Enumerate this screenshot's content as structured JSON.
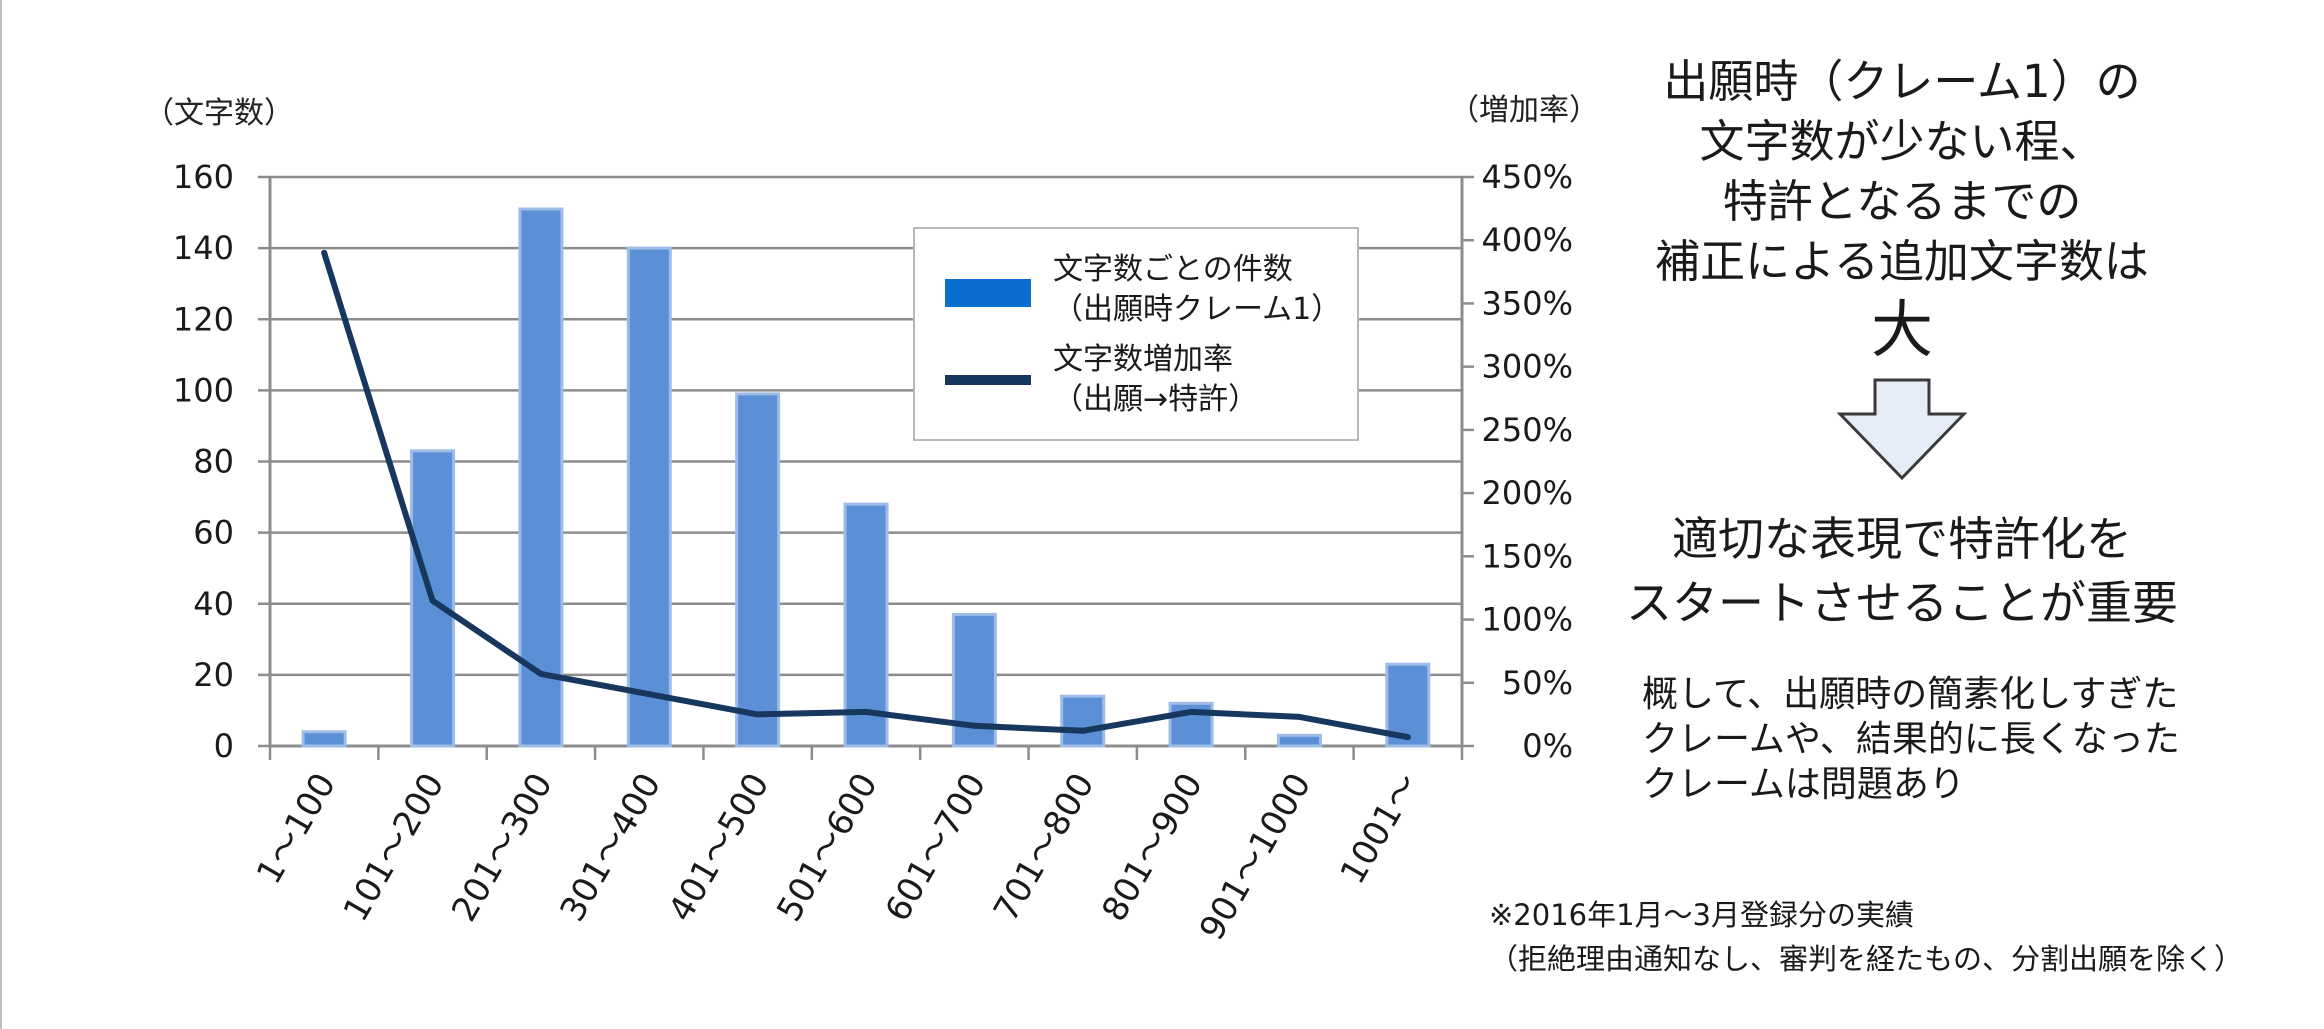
{
  "chart_data": {
    "type": "bar",
    "categories": [
      "1～100",
      "101～200",
      "201～300",
      "301～400",
      "401～500",
      "501～600",
      "601～700",
      "701～800",
      "801～900",
      "901～1000",
      "1001～"
    ],
    "series": [
      {
        "name": "文字数ごとの件数（出願時クレーム1）",
        "type": "bar",
        "axis": "left",
        "values": [
          4,
          83,
          151,
          140,
          99,
          68,
          37,
          14,
          12,
          3,
          23
        ]
      },
      {
        "name": "文字数増加率（出願→特許）",
        "type": "line",
        "axis": "right",
        "values": [
          390,
          115,
          57,
          41,
          25,
          27,
          16,
          12,
          27,
          23,
          7
        ]
      }
    ],
    "y_left": {
      "label": "（文字数）",
      "ylim": [
        0,
        160
      ],
      "ticks": [
        "0",
        "20",
        "40",
        "60",
        "80",
        "100",
        "120",
        "140",
        "160"
      ]
    },
    "y_right": {
      "label": "（増加率）",
      "ylim": [
        0,
        450
      ],
      "ticks": [
        "0%",
        "50%",
        "100%",
        "150%",
        "200%",
        "250%",
        "300%",
        "350%",
        "400%",
        "450%"
      ]
    },
    "grid": true,
    "legend_position": "top-right",
    "colors": {
      "bar": "#5b8fd6",
      "bar_edge": "#9dbce6",
      "line": "#17375e",
      "legend_bar": "#0a6ecf"
    }
  },
  "legend": {
    "bar_line1": "文字数ごとの件数",
    "bar_line2": "（出願時クレーム1）",
    "line_line1": "文字数増加率",
    "line_line2": "（出願→特許）"
  },
  "message": {
    "line1": "出願時（クレーム1）の",
    "line2": "文字数が少ない程、",
    "line3": "特許となるまでの",
    "line4": "補正による追加文字数は",
    "big": "大",
    "conclusion1": "適切な表現で特許化を",
    "conclusion2": "スタートさせることが重要",
    "detail1": "概して、出願時の簡素化しすぎた",
    "detail2": "クレームや、結果的に長くなった",
    "detail3": "クレームは問題あり"
  },
  "note": {
    "line1": "※2016年1月～3月登録分の実績",
    "line2": "（拒絶理由通知なし、審判を経たもの、分割出願を除く）"
  },
  "arrow_icon": "down-arrow-icon"
}
